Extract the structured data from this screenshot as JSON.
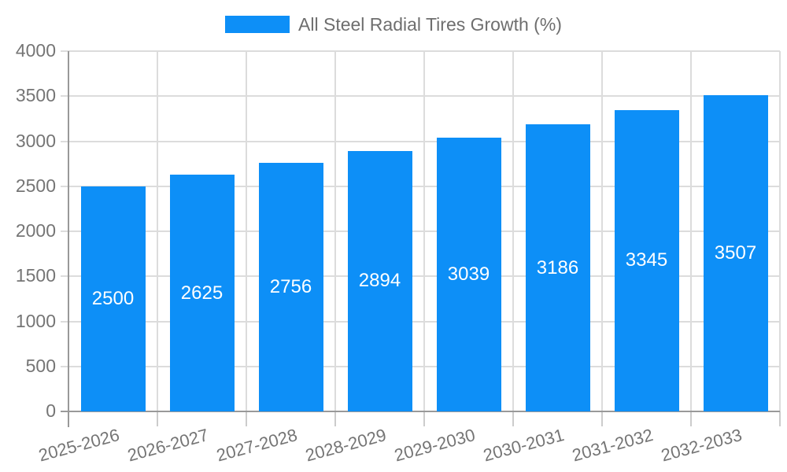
{
  "legend": {
    "label": "All Steel Radial Tires Growth (%)"
  },
  "colors": {
    "bar": "#0d8ff7",
    "grid": "#dcdcdc",
    "axis": "#999999",
    "boundary_tick": "#cccccc",
    "tick_label": "#757575",
    "legend_text": "#6e6e6e",
    "value_label": "#ffffff",
    "background": "#ffffff"
  },
  "chart_data": {
    "type": "bar",
    "title": "All Steel Radial Tires Growth (%)",
    "categories": [
      "2025-2026",
      "2026-2027",
      "2027-2028",
      "2028-2029",
      "2029-2030",
      "2030-2031",
      "2031-2032",
      "2032-2033"
    ],
    "values": [
      2500,
      2625,
      2756,
      2894,
      3039,
      3186,
      3345,
      3507
    ],
    "xlabel": "",
    "ylabel": "",
    "ylim": [
      0,
      4000
    ],
    "yticks": [
      0,
      500,
      1000,
      1500,
      2000,
      2500,
      3000,
      3500,
      4000
    ],
    "grid": true,
    "legend_position": "top",
    "value_label_position": "inside-center",
    "x_tick_rotation_deg": -15
  }
}
